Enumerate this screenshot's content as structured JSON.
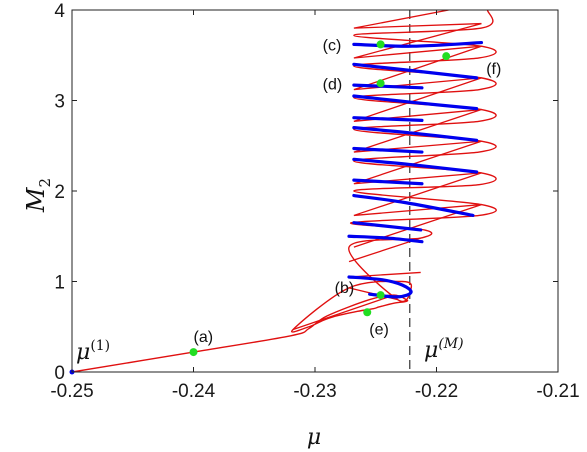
{
  "chart_data": {
    "type": "line",
    "title": "",
    "xlabel": "μ",
    "ylabel": "M",
    "ylabel_subscript": "2",
    "xlim": [
      -0.25,
      -0.21
    ],
    "ylim": [
      0,
      4
    ],
    "xticks": [
      -0.25,
      -0.24,
      -0.23,
      -0.22,
      -0.21
    ],
    "xtick_labels": [
      "-0.25",
      "-0.24",
      "-0.23",
      "-0.22",
      "-0.21"
    ],
    "yticks": [
      0,
      1,
      2,
      3,
      4
    ],
    "ytick_labels": [
      "0",
      "1",
      "2",
      "3",
      "4"
    ],
    "grid": false,
    "colors": {
      "stable": "#0000ee",
      "unstable": "#e01010",
      "markers": "#22dd22",
      "reference": "#333333"
    },
    "branch": {
      "path": [
        [
          -0.25,
          0.0
        ],
        [
          -0.24,
          0.22
        ],
        [
          -0.232,
          0.4
        ],
        [
          -0.2305,
          0.48
        ],
        [
          -0.229,
          0.62
        ],
        [
          -0.2255,
          0.8
        ],
        [
          -0.2235,
          0.85
        ],
        [
          -0.2225,
          0.8
        ],
        [
          -0.2225,
          0.78
        ],
        [
          -0.2235,
          0.76
        ],
        [
          -0.2247,
          0.72
        ],
        [
          -0.2252,
          0.7
        ],
        [
          -0.2265,
          0.67
        ],
        [
          -0.2285,
          0.61
        ],
        [
          -0.2295,
          0.56
        ],
        [
          -0.2305,
          0.5
        ],
        [
          -0.2318,
          0.47
        ],
        [
          -0.2272,
          0.93
        ],
        [
          -0.2228,
          1.0
        ],
        [
          -0.2221,
          0.92
        ],
        [
          -0.2232,
          0.8
        ],
        [
          -0.2272,
          1.38
        ],
        [
          -0.2213,
          1.48
        ],
        [
          -0.221,
          1.57
        ],
        [
          -0.227,
          1.65
        ],
        [
          -0.2165,
          1.73
        ],
        [
          -0.2163,
          1.85
        ],
        [
          -0.2268,
          2.0
        ],
        [
          -0.2165,
          2.07
        ],
        [
          -0.2163,
          2.2
        ],
        [
          -0.2268,
          2.33
        ],
        [
          -0.2165,
          2.43
        ],
        [
          -0.2163,
          2.55
        ],
        [
          -0.2268,
          2.68
        ],
        [
          -0.2165,
          2.77
        ],
        [
          -0.2163,
          2.9
        ],
        [
          -0.2268,
          3.03
        ],
        [
          -0.2165,
          3.12
        ],
        [
          -0.2163,
          3.25
        ],
        [
          -0.2268,
          3.38
        ],
        [
          -0.2165,
          3.47
        ],
        [
          -0.2163,
          3.6
        ],
        [
          -0.2268,
          3.72
        ],
        [
          -0.2163,
          3.8
        ],
        [
          -0.2158,
          4.0
        ]
      ],
      "upper_zigzag": [
        [
          -0.2268,
          1.38
        ],
        [
          -0.2163,
          1.85
        ],
        [
          -0.2268,
          1.73
        ],
        [
          -0.2163,
          2.2
        ],
        [
          -0.2268,
          2.08
        ],
        [
          -0.2163,
          2.55
        ],
        [
          -0.2268,
          2.43
        ],
        [
          -0.2163,
          2.9
        ],
        [
          -0.2268,
          2.77
        ],
        [
          -0.2163,
          3.25
        ],
        [
          -0.2268,
          3.12
        ],
        [
          -0.2163,
          3.6
        ],
        [
          -0.2268,
          3.47
        ],
        [
          -0.2163,
          3.85
        ],
        [
          -0.2268,
          3.8
        ],
        [
          -0.219,
          4.0
        ]
      ],
      "lower_fan": [
        [
          [
            -0.2318,
            0.47
          ],
          [
            -0.2235,
            0.85
          ]
        ],
        [
          [
            -0.2272,
            0.93
          ],
          [
            -0.2232,
            0.8
          ]
        ],
        [
          [
            -0.2272,
            1.05
          ],
          [
            -0.2213,
            1.1
          ]
        ],
        [
          [
            -0.2272,
            1.22
          ],
          [
            -0.2213,
            1.48
          ]
        ]
      ]
    },
    "stable_segments": [
      [
        [
          -0.2272,
          1.05
        ],
        [
          -0.2245,
          1.02
        ],
        [
          -0.2228,
          0.96
        ],
        [
          -0.2221,
          0.88
        ],
        [
          -0.2232,
          0.83
        ],
        [
          -0.2255,
          0.86
        ]
      ],
      [
        [
          -0.2272,
          1.5
        ],
        [
          -0.224,
          1.48
        ],
        [
          -0.2212,
          1.44
        ]
      ],
      [
        [
          -0.2268,
          1.65
        ],
        [
          -0.2213,
          1.57
        ]
      ],
      [
        [
          -0.2268,
          1.95
        ],
        [
          -0.2225,
          1.87
        ],
        [
          -0.217,
          1.73
        ]
      ],
      [
        [
          -0.2268,
          2.12
        ],
        [
          -0.2212,
          2.08
        ]
      ],
      [
        [
          -0.2268,
          2.35
        ],
        [
          -0.222,
          2.29
        ],
        [
          -0.2167,
          2.21
        ]
      ],
      [
        [
          -0.2268,
          2.47
        ],
        [
          -0.2212,
          2.43
        ]
      ],
      [
        [
          -0.2268,
          2.7
        ],
        [
          -0.222,
          2.64
        ],
        [
          -0.2167,
          2.56
        ]
      ],
      [
        [
          -0.2268,
          2.81
        ],
        [
          -0.2212,
          2.78
        ]
      ],
      [
        [
          -0.2268,
          3.05
        ],
        [
          -0.222,
          2.98
        ],
        [
          -0.2167,
          2.91
        ]
      ],
      [
        [
          -0.2268,
          3.17
        ],
        [
          -0.2212,
          3.14
        ]
      ],
      [
        [
          -0.2268,
          3.4
        ],
        [
          -0.222,
          3.33
        ],
        [
          -0.2167,
          3.25
        ]
      ],
      [
        [
          -0.2268,
          3.62
        ],
        [
          -0.222,
          3.6
        ],
        [
          -0.2163,
          3.64
        ]
      ]
    ],
    "reference_line": {
      "x": -0.2222,
      "label": "μ",
      "label_superscript": "(M)"
    },
    "points": [
      {
        "label": "(a)",
        "x": -0.24,
        "y": 0.22
      },
      {
        "label": "(b)",
        "x": -0.2246,
        "y": 0.85
      },
      {
        "label": "(c)",
        "x": -0.2246,
        "y": 3.62
      },
      {
        "label": "(d)",
        "x": -0.2246,
        "y": 3.19
      },
      {
        "label": "(e)",
        "x": -0.2257,
        "y": 0.66
      },
      {
        "label": "(f)",
        "x": -0.2192,
        "y": 3.49
      }
    ],
    "start_point": {
      "x": -0.25,
      "y": 0.0,
      "label": "μ",
      "label_superscript": "(1)"
    }
  }
}
